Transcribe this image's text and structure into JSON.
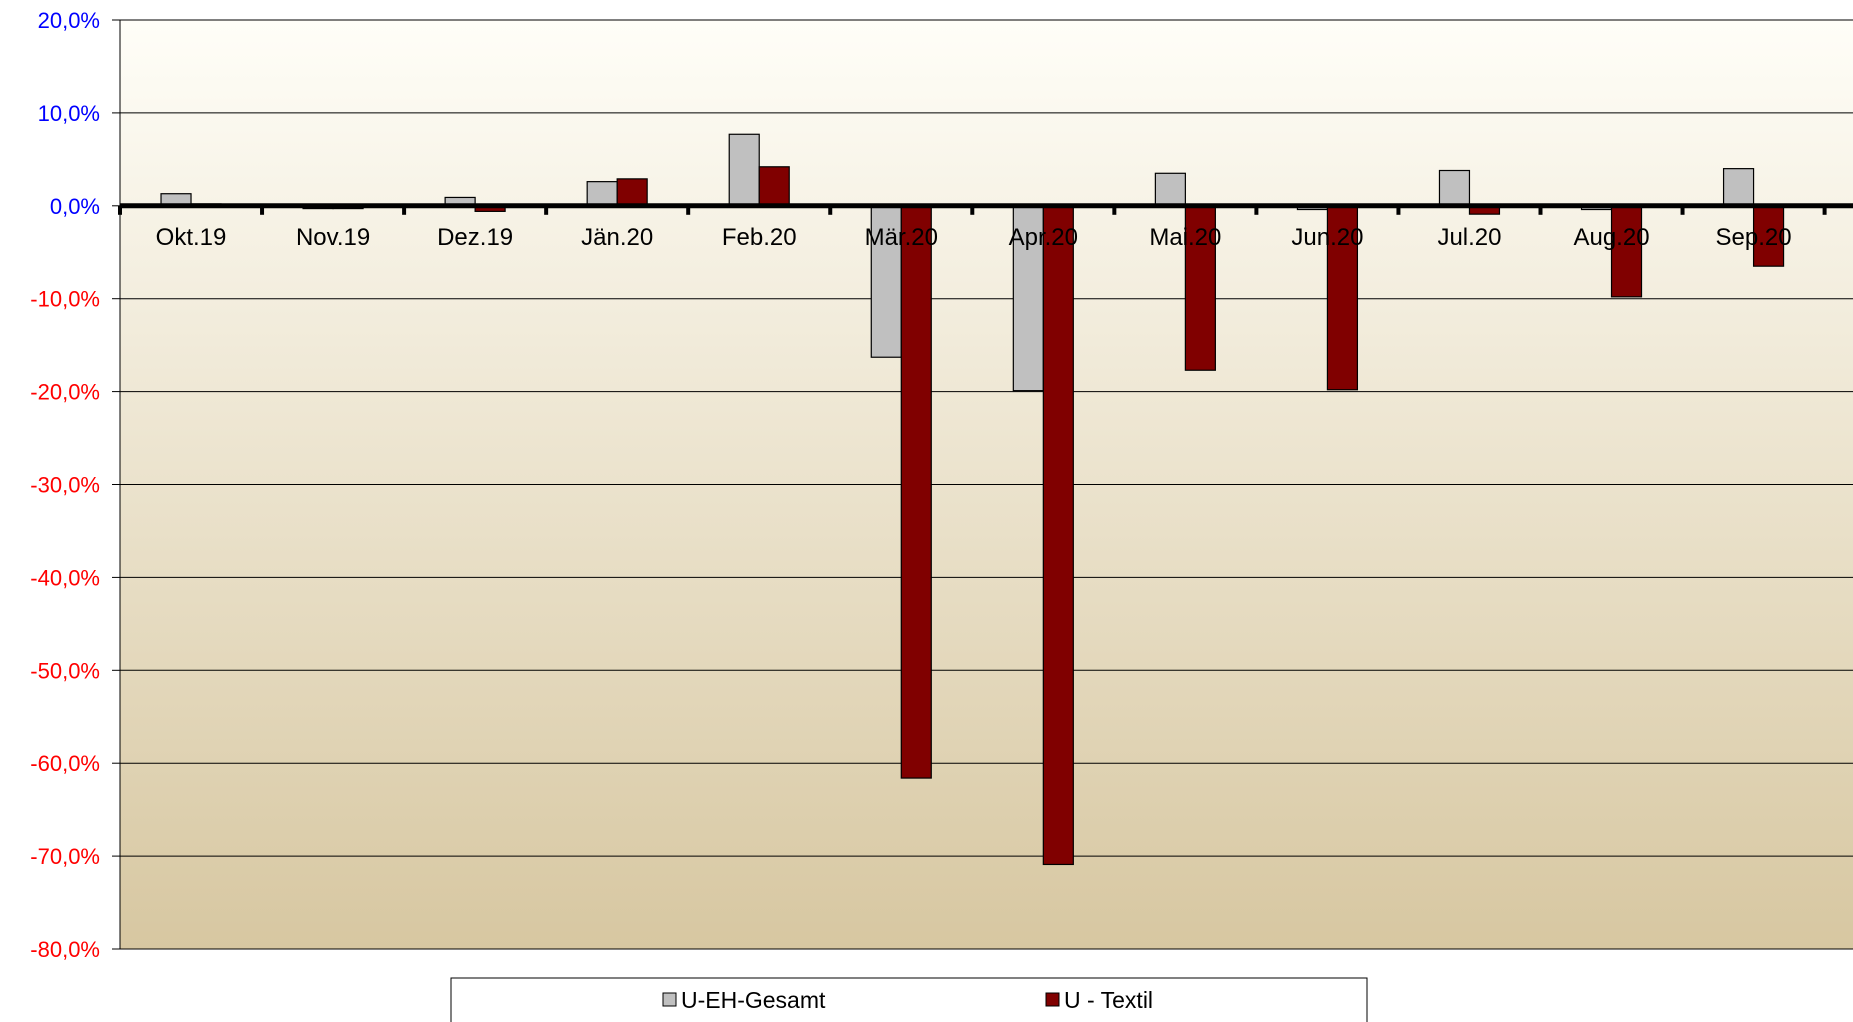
{
  "chart_data": {
    "type": "bar",
    "categories": [
      "Okt.19",
      "Nov.19",
      "Dez.19",
      "Jän.20",
      "Feb.20",
      "Mär.20",
      "Apr.20",
      "Mai.20",
      "Jun.20",
      "Jul.20",
      "Aug.20",
      "Sep.20"
    ],
    "series": [
      {
        "name": "U-EH-Gesamt",
        "values": [
          1.3,
          -0.3,
          0.9,
          2.6,
          7.7,
          -16.3,
          -19.9,
          3.5,
          -0.4,
          3.8,
          -0.4,
          4.0
        ],
        "color": "#c0c0c0"
      },
      {
        "name": "U - Textil",
        "values": [
          0.2,
          -0.3,
          -0.6,
          2.9,
          4.2,
          -61.6,
          -70.9,
          -17.7,
          -19.8,
          -0.9,
          -9.8,
          -6.5
        ],
        "color": "#800000"
      }
    ],
    "ylim": [
      -80,
      20
    ],
    "yticks": [
      20,
      10,
      0,
      -10,
      -20,
      -30,
      -40,
      -50,
      -60,
      -70,
      -80
    ],
    "ytick_labels": [
      "20,0%",
      "10,0%",
      "0,0%",
      "-10,0%",
      "-20,0%",
      "-30,0%",
      "-40,0%",
      "-50,0%",
      "-60,0%",
      "-70,0%",
      "-80,0%"
    ],
    "ytick_colors": {
      "positive": "#0000ff",
      "negative": "#ff0000"
    },
    "grid": true,
    "legend": "bottom",
    "background_gradient": [
      "#fffef8",
      "#d7c7a1"
    ],
    "title": "",
    "xlabel": "",
    "ylabel": ""
  }
}
